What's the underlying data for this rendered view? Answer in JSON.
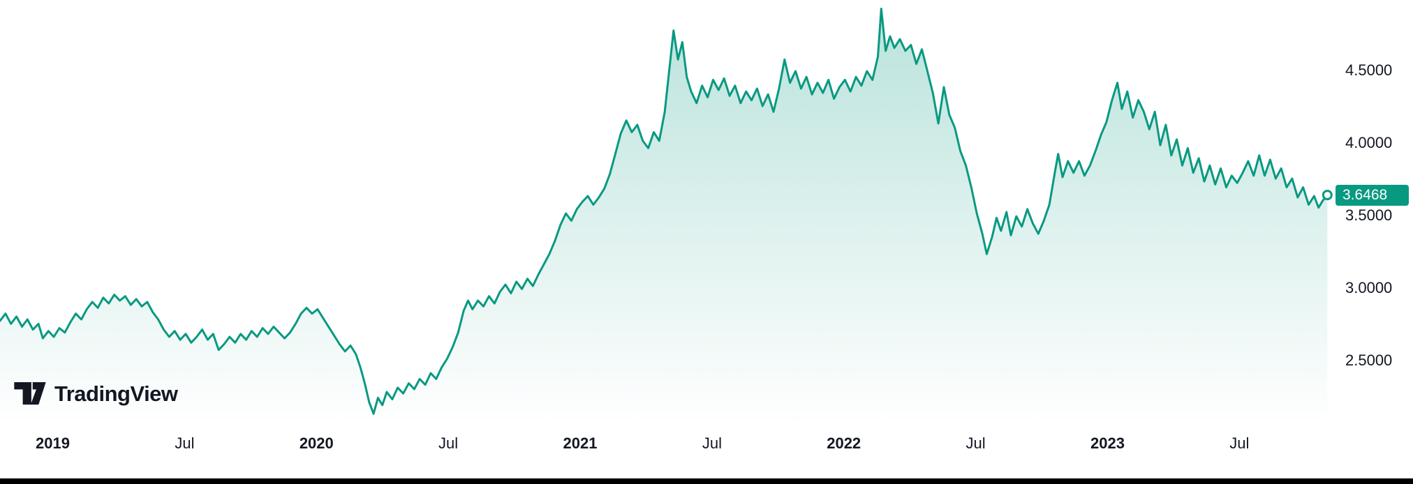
{
  "brand": {
    "name": "TradingView"
  },
  "colors": {
    "accent": "#089981",
    "text": "#131722",
    "background": "#ffffff",
    "badge_text": "#ffffff",
    "bottom_bar": "#000000"
  },
  "price_scale": {
    "tick_labels": [
      "4.5000",
      "4.0000",
      "3.5000",
      "3.0000",
      "2.5000"
    ],
    "last_price_label": "3.6468"
  },
  "chart_data": {
    "type": "area",
    "title": "",
    "line_color": "#089981",
    "area_fill": {
      "color": "#089981",
      "top_opacity": 0.28,
      "bottom_opacity": 0
    },
    "legend": "none",
    "grid": "off",
    "x_axis": {
      "unit": "months since Jan 2019",
      "range": [
        -2.4,
        58.5
      ],
      "ticks": [
        {
          "label": "2019",
          "t": 0,
          "bold": true
        },
        {
          "label": "Jul",
          "t": 6,
          "bold": false
        },
        {
          "label": "2020",
          "t": 12,
          "bold": true
        },
        {
          "label": "Jul",
          "t": 18,
          "bold": false
        },
        {
          "label": "2021",
          "t": 24,
          "bold": true
        },
        {
          "label": "Jul",
          "t": 30,
          "bold": false
        },
        {
          "label": "2022",
          "t": 36,
          "bold": true
        },
        {
          "label": "Jul",
          "t": 42,
          "bold": false
        },
        {
          "label": "2023",
          "t": 48,
          "bold": true
        },
        {
          "label": "Jul",
          "t": 54,
          "bold": false
        }
      ]
    },
    "y_axis": {
      "range": [
        2.06,
        4.99
      ],
      "ticks": [
        {
          "label": "4.5000",
          "v": 4.5
        },
        {
          "label": "4.0000",
          "v": 4.0
        },
        {
          "label": "3.5000",
          "v": 3.5
        },
        {
          "label": "3.0000",
          "v": 3.0
        },
        {
          "label": "2.5000",
          "v": 2.5
        }
      ]
    },
    "last_value": 3.6468,
    "last_value_label": "3.6468",
    "points": [
      [
        -2.4,
        2.78
      ],
      [
        -2.15,
        2.83
      ],
      [
        -1.9,
        2.76
      ],
      [
        -1.65,
        2.81
      ],
      [
        -1.4,
        2.74
      ],
      [
        -1.15,
        2.79
      ],
      [
        -0.9,
        2.72
      ],
      [
        -0.65,
        2.76
      ],
      [
        -0.45,
        2.66
      ],
      [
        -0.2,
        2.71
      ],
      [
        0.05,
        2.67
      ],
      [
        0.3,
        2.73
      ],
      [
        0.55,
        2.7
      ],
      [
        0.8,
        2.77
      ],
      [
        1.05,
        2.83
      ],
      [
        1.3,
        2.79
      ],
      [
        1.55,
        2.86
      ],
      [
        1.8,
        2.91
      ],
      [
        2.05,
        2.87
      ],
      [
        2.3,
        2.94
      ],
      [
        2.55,
        2.9
      ],
      [
        2.8,
        2.96
      ],
      [
        3.05,
        2.92
      ],
      [
        3.3,
        2.95
      ],
      [
        3.55,
        2.89
      ],
      [
        3.8,
        2.93
      ],
      [
        4.05,
        2.88
      ],
      [
        4.3,
        2.91
      ],
      [
        4.55,
        2.84
      ],
      [
        4.8,
        2.79
      ],
      [
        5.05,
        2.72
      ],
      [
        5.3,
        2.67
      ],
      [
        5.55,
        2.71
      ],
      [
        5.8,
        2.65
      ],
      [
        6.05,
        2.69
      ],
      [
        6.3,
        2.63
      ],
      [
        6.55,
        2.67
      ],
      [
        6.8,
        2.72
      ],
      [
        7.05,
        2.65
      ],
      [
        7.3,
        2.69
      ],
      [
        7.55,
        2.58
      ],
      [
        7.8,
        2.62
      ],
      [
        8.05,
        2.67
      ],
      [
        8.3,
        2.63
      ],
      [
        8.55,
        2.69
      ],
      [
        8.8,
        2.65
      ],
      [
        9.05,
        2.71
      ],
      [
        9.3,
        2.67
      ],
      [
        9.55,
        2.73
      ],
      [
        9.8,
        2.69
      ],
      [
        10.05,
        2.74
      ],
      [
        10.3,
        2.7
      ],
      [
        10.55,
        2.66
      ],
      [
        10.8,
        2.7
      ],
      [
        11.05,
        2.76
      ],
      [
        11.3,
        2.83
      ],
      [
        11.55,
        2.87
      ],
      [
        11.8,
        2.83
      ],
      [
        12.05,
        2.86
      ],
      [
        12.3,
        2.8
      ],
      [
        12.55,
        2.74
      ],
      [
        12.8,
        2.68
      ],
      [
        13.05,
        2.62
      ],
      [
        13.3,
        2.57
      ],
      [
        13.55,
        2.61
      ],
      [
        13.8,
        2.55
      ],
      [
        14.0,
        2.46
      ],
      [
        14.2,
        2.35
      ],
      [
        14.4,
        2.22
      ],
      [
        14.6,
        2.14
      ],
      [
        14.8,
        2.25
      ],
      [
        15.0,
        2.2
      ],
      [
        15.2,
        2.29
      ],
      [
        15.45,
        2.24
      ],
      [
        15.7,
        2.32
      ],
      [
        15.95,
        2.28
      ],
      [
        16.2,
        2.35
      ],
      [
        16.45,
        2.31
      ],
      [
        16.7,
        2.38
      ],
      [
        16.95,
        2.34
      ],
      [
        17.2,
        2.42
      ],
      [
        17.45,
        2.38
      ],
      [
        17.7,
        2.46
      ],
      [
        17.95,
        2.52
      ],
      [
        18.2,
        2.6
      ],
      [
        18.45,
        2.7
      ],
      [
        18.7,
        2.85
      ],
      [
        18.9,
        2.92
      ],
      [
        19.1,
        2.86
      ],
      [
        19.35,
        2.92
      ],
      [
        19.6,
        2.88
      ],
      [
        19.85,
        2.95
      ],
      [
        20.1,
        2.9
      ],
      [
        20.35,
        2.98
      ],
      [
        20.6,
        3.03
      ],
      [
        20.85,
        2.97
      ],
      [
        21.1,
        3.05
      ],
      [
        21.35,
        3.0
      ],
      [
        21.6,
        3.07
      ],
      [
        21.85,
        3.02
      ],
      [
        22.1,
        3.1
      ],
      [
        22.35,
        3.17
      ],
      [
        22.6,
        3.24
      ],
      [
        22.85,
        3.33
      ],
      [
        23.1,
        3.44
      ],
      [
        23.35,
        3.52
      ],
      [
        23.6,
        3.47
      ],
      [
        23.85,
        3.55
      ],
      [
        24.1,
        3.6
      ],
      [
        24.35,
        3.64
      ],
      [
        24.6,
        3.58
      ],
      [
        24.85,
        3.63
      ],
      [
        25.1,
        3.69
      ],
      [
        25.35,
        3.79
      ],
      [
        25.6,
        3.93
      ],
      [
        25.85,
        4.07
      ],
      [
        26.1,
        4.16
      ],
      [
        26.35,
        4.08
      ],
      [
        26.6,
        4.13
      ],
      [
        26.85,
        4.02
      ],
      [
        27.1,
        3.97
      ],
      [
        27.35,
        4.08
      ],
      [
        27.6,
        4.02
      ],
      [
        27.85,
        4.22
      ],
      [
        28.05,
        4.5
      ],
      [
        28.25,
        4.78
      ],
      [
        28.45,
        4.58
      ],
      [
        28.65,
        4.7
      ],
      [
        28.85,
        4.46
      ],
      [
        29.05,
        4.36
      ],
      [
        29.3,
        4.28
      ],
      [
        29.55,
        4.4
      ],
      [
        29.8,
        4.32
      ],
      [
        30.05,
        4.44
      ],
      [
        30.3,
        4.37
      ],
      [
        30.55,
        4.45
      ],
      [
        30.8,
        4.33
      ],
      [
        31.05,
        4.4
      ],
      [
        31.3,
        4.28
      ],
      [
        31.55,
        4.36
      ],
      [
        31.8,
        4.3
      ],
      [
        32.05,
        4.38
      ],
      [
        32.3,
        4.26
      ],
      [
        32.55,
        4.34
      ],
      [
        32.8,
        4.22
      ],
      [
        33.05,
        4.38
      ],
      [
        33.3,
        4.58
      ],
      [
        33.55,
        4.42
      ],
      [
        33.8,
        4.5
      ],
      [
        34.05,
        4.38
      ],
      [
        34.3,
        4.46
      ],
      [
        34.55,
        4.34
      ],
      [
        34.8,
        4.42
      ],
      [
        35.05,
        4.35
      ],
      [
        35.3,
        4.44
      ],
      [
        35.55,
        4.31
      ],
      [
        35.8,
        4.39
      ],
      [
        36.05,
        4.44
      ],
      [
        36.3,
        4.36
      ],
      [
        36.55,
        4.46
      ],
      [
        36.8,
        4.4
      ],
      [
        37.05,
        4.5
      ],
      [
        37.3,
        4.44
      ],
      [
        37.55,
        4.6
      ],
      [
        37.7,
        4.93
      ],
      [
        37.9,
        4.64
      ],
      [
        38.1,
        4.74
      ],
      [
        38.3,
        4.66
      ],
      [
        38.55,
        4.72
      ],
      [
        38.8,
        4.64
      ],
      [
        39.05,
        4.68
      ],
      [
        39.3,
        4.55
      ],
      [
        39.55,
        4.65
      ],
      [
        39.8,
        4.5
      ],
      [
        40.05,
        4.35
      ],
      [
        40.3,
        4.14
      ],
      [
        40.55,
        4.39
      ],
      [
        40.8,
        4.2
      ],
      [
        41.05,
        4.11
      ],
      [
        41.3,
        3.95
      ],
      [
        41.55,
        3.85
      ],
      [
        41.8,
        3.7
      ],
      [
        42.05,
        3.52
      ],
      [
        42.3,
        3.38
      ],
      [
        42.5,
        3.24
      ],
      [
        42.75,
        3.36
      ],
      [
        42.95,
        3.49
      ],
      [
        43.15,
        3.4
      ],
      [
        43.4,
        3.53
      ],
      [
        43.6,
        3.37
      ],
      [
        43.85,
        3.5
      ],
      [
        44.1,
        3.43
      ],
      [
        44.35,
        3.55
      ],
      [
        44.6,
        3.45
      ],
      [
        44.85,
        3.38
      ],
      [
        45.1,
        3.47
      ],
      [
        45.35,
        3.58
      ],
      [
        45.6,
        3.8
      ],
      [
        45.75,
        3.93
      ],
      [
        45.95,
        3.77
      ],
      [
        46.2,
        3.88
      ],
      [
        46.45,
        3.8
      ],
      [
        46.7,
        3.88
      ],
      [
        46.95,
        3.78
      ],
      [
        47.2,
        3.85
      ],
      [
        47.45,
        3.95
      ],
      [
        47.7,
        4.06
      ],
      [
        47.95,
        4.15
      ],
      [
        48.2,
        4.3
      ],
      [
        48.45,
        4.42
      ],
      [
        48.65,
        4.24
      ],
      [
        48.9,
        4.36
      ],
      [
        49.15,
        4.18
      ],
      [
        49.4,
        4.3
      ],
      [
        49.65,
        4.22
      ],
      [
        49.9,
        4.1
      ],
      [
        50.15,
        4.22
      ],
      [
        50.4,
        3.99
      ],
      [
        50.65,
        4.13
      ],
      [
        50.9,
        3.92
      ],
      [
        51.15,
        4.03
      ],
      [
        51.4,
        3.85
      ],
      [
        51.65,
        3.97
      ],
      [
        51.9,
        3.8
      ],
      [
        52.15,
        3.9
      ],
      [
        52.4,
        3.74
      ],
      [
        52.65,
        3.85
      ],
      [
        52.9,
        3.72
      ],
      [
        53.15,
        3.83
      ],
      [
        53.4,
        3.7
      ],
      [
        53.65,
        3.78
      ],
      [
        53.9,
        3.73
      ],
      [
        54.15,
        3.8
      ],
      [
        54.4,
        3.88
      ],
      [
        54.65,
        3.78
      ],
      [
        54.9,
        3.92
      ],
      [
        55.15,
        3.78
      ],
      [
        55.4,
        3.89
      ],
      [
        55.65,
        3.76
      ],
      [
        55.9,
        3.83
      ],
      [
        56.15,
        3.7
      ],
      [
        56.4,
        3.76
      ],
      [
        56.65,
        3.63
      ],
      [
        56.9,
        3.7
      ],
      [
        57.15,
        3.58
      ],
      [
        57.4,
        3.64
      ],
      [
        57.6,
        3.56
      ],
      [
        57.8,
        3.61
      ],
      [
        58.0,
        3.6468
      ]
    ]
  }
}
